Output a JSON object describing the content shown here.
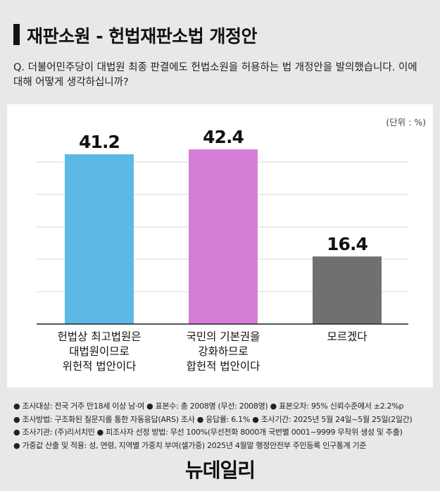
{
  "title": "재판소원 - 헌법재판소법 개정안",
  "question": "Q. 더불어민주당이 대법원 최종 판결에도 헌법소원을 허용하는 법 개정안을 발의했습니다. 이에 대해 어떻게 생각하십니까?",
  "unit_label": "(단위 : %)",
  "chart_data": {
    "type": "bar",
    "categories": [
      [
        "헌법상 최고법원은",
        "대법원이므로",
        "위헌적 법안이다"
      ],
      [
        "국민의 기본권을",
        "강화하므로",
        "합헌적 법안이다"
      ],
      [
        "모르겠다"
      ]
    ],
    "values": [
      41.2,
      42.4,
      16.4
    ],
    "value_labels": [
      "41.2",
      "42.4",
      "16.4"
    ],
    "colors": [
      "#5cb8e4",
      "#d67ed6",
      "#707070"
    ],
    "ylim": [
      0,
      45
    ],
    "grid": true
  },
  "notes": [
    "● 조사대상: 전국 거주 만18세 이상 남·여 ● 표본수: 총 2008명 (무선: 2008명) ● 표본오차: 95% 신뢰수준에서 ±2.2%p",
    "● 조사방법: 구조화된 질문지를 통한 자동응답(ARS) 조사 ● 응답률: 6.1% ● 조사기간: 2025년 5월 24일~5월 25일(2일간)",
    "● 조사기관: (주)리서치민 ● 피조사자 선정 방법: 무선 100%(무선전화 8000개 국번별 0001~9999 무작위 생성 및 추출)",
    "● 가중값 산출 및 적용: 성, 연령, 지역별 가중치 부여(셀가중) 2025년 4월말 행정안전부 주민등록 인구통계 기준"
  ],
  "logo": "뉴데일리"
}
